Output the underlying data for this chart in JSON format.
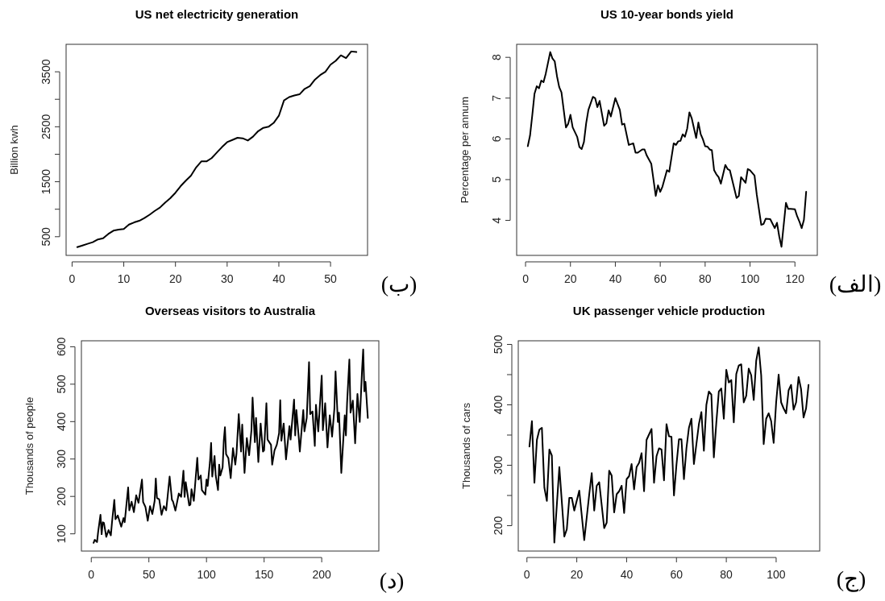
{
  "chart_data": [
    {
      "type": "line",
      "title": "US net electricity generation",
      "ylabel": "Billion kwh",
      "color": "#000000",
      "xlim": [
        -1.16,
        57.16
      ],
      "ylim": [
        160,
        4000
      ],
      "xticks": [
        0,
        10,
        20,
        30,
        40,
        50
      ],
      "yticks": [
        500,
        {
          "value": 1000,
          "label": null
        },
        1500,
        {
          "value": 2000,
          "label": null
        },
        2500,
        {
          "value": 3000,
          "label": null
        },
        3500
      ],
      "annotations": [
        "(ب)"
      ],
      "x": [
        1,
        2,
        3,
        4,
        5,
        6,
        7,
        8,
        9,
        10,
        11,
        12,
        13,
        14,
        15,
        16,
        17,
        18,
        19,
        20,
        21,
        22,
        23,
        24,
        25,
        26,
        27,
        28,
        29,
        30,
        31,
        32,
        33,
        34,
        35,
        36,
        37,
        38,
        39,
        40,
        41,
        42,
        43,
        44,
        45,
        46,
        47,
        48,
        49,
        50,
        51,
        52,
        53,
        54,
        55
      ],
      "values": [
        310,
        340,
        370,
        400,
        450,
        470,
        550,
        610,
        630,
        640,
        720,
        760,
        790,
        840,
        900,
        970,
        1030,
        1120,
        1200,
        1300,
        1420,
        1520,
        1610,
        1760,
        1870,
        1870,
        1930,
        2030,
        2130,
        2220,
        2260,
        2300,
        2290,
        2250,
        2320,
        2420,
        2480,
        2500,
        2570,
        2700,
        2980,
        3040,
        3070,
        3090,
        3190,
        3240,
        3360,
        3440,
        3500,
        3630,
        3700,
        3800,
        3750,
        3870,
        3860
      ]
    },
    {
      "type": "line",
      "title": "US 10-year bonds yield",
      "ylabel": "Percentage per annum",
      "color": "#000000",
      "xlim": [
        -3.96,
        129.96
      ],
      "ylim": [
        3.14,
        8.32
      ],
      "xticks": [
        0,
        20,
        40,
        60,
        80,
        100,
        120
      ],
      "yticks": [
        4,
        5,
        6,
        7,
        8
      ],
      "annotations": [
        "(الف)"
      ],
      "x": [
        1,
        2,
        3,
        4,
        5,
        6,
        7,
        8,
        9,
        11,
        12,
        13,
        14,
        15,
        16,
        18,
        19,
        20,
        21,
        23,
        24,
        25,
        26,
        27,
        28,
        30,
        31,
        32,
        33,
        35,
        36,
        37,
        38,
        40,
        42,
        43,
        44,
        46,
        47,
        48,
        49,
        50,
        52,
        53,
        54,
        56,
        58,
        59,
        60,
        61,
        63,
        64,
        66,
        67,
        68,
        69,
        70,
        71,
        72,
        73,
        74,
        76,
        77,
        78,
        79,
        80,
        81,
        82,
        83,
        84,
        85,
        86,
        87,
        89,
        90,
        91,
        94,
        95,
        96,
        97,
        98,
        99,
        100,
        102,
        103,
        105,
        106,
        107,
        109,
        111,
        112,
        113,
        114,
        116,
        117,
        118,
        120,
        121,
        122,
        123,
        124,
        125
      ],
      "values": [
        5.82,
        6.08,
        6.58,
        7.11,
        7.29,
        7.24,
        7.43,
        7.39,
        7.6,
        8.13,
        7.97,
        7.9,
        7.54,
        7.27,
        7.14,
        6.28,
        6.37,
        6.59,
        6.28,
        6.05,
        5.8,
        5.75,
        5.92,
        6.38,
        6.71,
        7.03,
        7.0,
        6.78,
        6.93,
        6.32,
        6.38,
        6.7,
        6.55,
        7.0,
        6.71,
        6.35,
        6.37,
        5.85,
        5.87,
        5.89,
        5.66,
        5.66,
        5.74,
        5.74,
        5.59,
        5.39,
        4.6,
        4.86,
        4.7,
        4.83,
        5.23,
        5.19,
        5.89,
        5.85,
        5.94,
        5.95,
        6.11,
        6.05,
        6.25,
        6.65,
        6.51,
        6.02,
        6.4,
        6.12,
        5.99,
        5.82,
        5.81,
        5.74,
        5.72,
        5.23,
        5.13,
        5.06,
        4.9,
        5.36,
        5.26,
        5.23,
        4.55,
        4.6,
        5.06,
        4.99,
        4.92,
        5.26,
        5.23,
        5.1,
        4.63,
        3.89,
        3.91,
        4.04,
        4.03,
        3.81,
        3.94,
        3.61,
        3.35,
        4.43,
        4.28,
        4.28,
        4.27,
        4.1,
        3.97,
        3.81,
        4.01,
        4.7
      ]
    },
    {
      "type": "line",
      "title": "Overseas visitors to Australia",
      "ylabel": "Thousands of people",
      "color": "#000000",
      "xlim": [
        -8.56,
        249.56
      ],
      "ylim": [
        54,
        616
      ],
      "xticks": [
        0,
        50,
        100,
        150,
        200
      ],
      "yticks": [
        100,
        200,
        300,
        400,
        500,
        600
      ],
      "annotations": [
        "(د)"
      ],
      "x": [
        2,
        3,
        4,
        5,
        6,
        8,
        9,
        10,
        11,
        13,
        15,
        17,
        18,
        20,
        21,
        23,
        26,
        28,
        29,
        32,
        33,
        35,
        37,
        39,
        41,
        44,
        45,
        47,
        49,
        51,
        53,
        55,
        56,
        57,
        59,
        61,
        63,
        65,
        66,
        68,
        70,
        71,
        73,
        76,
        78,
        80,
        81,
        82,
        85,
        86,
        87,
        89,
        92,
        93,
        95,
        96,
        99,
        100,
        101,
        103,
        104,
        105,
        107,
        108,
        110,
        111,
        112,
        114,
        115,
        116,
        117,
        119,
        121,
        123,
        125,
        126,
        128,
        130,
        131,
        133,
        135,
        137,
        139,
        140,
        142,
        143,
        145,
        147,
        149,
        150,
        152,
        153,
        156,
        157,
        159,
        161,
        163,
        164,
        165,
        167,
        169,
        172,
        173,
        176,
        177,
        178,
        180,
        181,
        184,
        185,
        187,
        189,
        190,
        192,
        194,
        195,
        197,
        200,
        201,
        203,
        205,
        207,
        209,
        211,
        212,
        214,
        215,
        217,
        220,
        221,
        222,
        224,
        225,
        227,
        229,
        231,
        233,
        235,
        236,
        237,
        238,
        240
      ],
      "values": [
        76,
        84,
        81,
        78,
        106,
        151,
        99,
        131,
        129,
        92,
        110,
        96,
        131,
        191,
        139,
        149,
        119,
        142,
        131,
        224,
        163,
        186,
        158,
        203,
        183,
        245,
        185,
        172,
        135,
        174,
        153,
        188,
        248,
        196,
        192,
        151,
        174,
        163,
        192,
        253,
        191,
        186,
        162,
        208,
        199,
        269,
        199,
        238,
        176,
        178,
        219,
        188,
        303,
        245,
        256,
        217,
        205,
        245,
        228,
        292,
        343,
        253,
        308,
        256,
        217,
        285,
        256,
        278,
        349,
        385,
        313,
        302,
        249,
        329,
        285,
        313,
        420,
        320,
        392,
        263,
        356,
        310,
        377,
        464,
        345,
        410,
        292,
        395,
        320,
        323,
        449,
        352,
        338,
        285,
        323,
        338,
        369,
        457,
        349,
        395,
        299,
        388,
        352,
        459,
        363,
        431,
        360,
        320,
        431,
        374,
        410,
        559,
        420,
        427,
        335,
        445,
        374,
        523,
        377,
        449,
        331,
        417,
        360,
        435,
        534,
        399,
        424,
        263,
        417,
        363,
        449,
        566,
        424,
        456,
        342,
        474,
        399,
        538,
        593,
        481,
        506,
        410
      ]
    },
    {
      "type": "line",
      "title": "UK passenger vehicle production",
      "ylabel": "Thousands of cars",
      "color": "#000000",
      "xlim": [
        -3.48,
        117.48
      ],
      "ylim": [
        158,
        506
      ],
      "xticks": [
        0,
        20,
        40,
        60,
        80,
        100
      ],
      "yticks": [
        200,
        {
          "value": 250,
          "label": null
        },
        300,
        {
          "value": 350,
          "label": null
        },
        400,
        {
          "value": 450,
          "label": null
        },
        500
      ],
      "annotations": [
        "(ج)"
      ],
      "x": [
        1,
        2,
        3,
        4,
        5,
        6,
        7,
        8,
        9,
        10,
        11,
        13,
        15,
        16,
        17,
        18,
        19,
        21,
        23,
        25,
        26,
        27,
        28,
        29,
        31,
        32,
        33,
        34,
        35,
        36,
        37,
        38,
        39,
        40,
        41,
        42,
        43,
        44,
        45,
        46,
        47,
        48,
        50,
        51,
        52,
        53,
        54,
        55,
        56,
        57,
        58,
        59,
        60,
        61,
        62,
        63,
        64,
        65,
        66,
        67,
        68,
        69,
        70,
        71,
        72,
        73,
        74,
        75,
        76,
        77,
        78,
        79,
        80,
        81,
        82,
        83,
        84,
        85,
        86,
        87,
        88,
        89,
        90,
        91,
        92,
        93,
        94,
        95,
        96,
        97,
        98,
        99,
        100,
        101,
        102,
        103,
        104,
        105,
        106,
        107,
        108,
        109,
        110,
        111,
        112,
        113
      ],
      "values": [
        331,
        373,
        271,
        342,
        359,
        362,
        263,
        241,
        326,
        316,
        172,
        297,
        182,
        194,
        246,
        246,
        225,
        258,
        176,
        252,
        287,
        225,
        266,
        272,
        196,
        205,
        291,
        283,
        222,
        252,
        257,
        266,
        221,
        277,
        282,
        302,
        260,
        297,
        304,
        320,
        257,
        342,
        360,
        271,
        315,
        328,
        326,
        275,
        368,
        348,
        347,
        250,
        301,
        343,
        343,
        277,
        328,
        362,
        377,
        302,
        335,
        368,
        388,
        324,
        400,
        422,
        417,
        313,
        371,
        422,
        427,
        377,
        458,
        437,
        441,
        371,
        451,
        465,
        467,
        404,
        415,
        460,
        449,
        408,
        473,
        495,
        449,
        335,
        377,
        386,
        373,
        337,
        404,
        450,
        404,
        394,
        386,
        424,
        433,
        392,
        404,
        446,
        426,
        379,
        394,
        433
      ]
    }
  ]
}
